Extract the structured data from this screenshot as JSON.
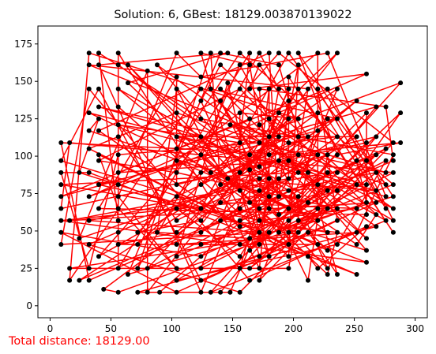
{
  "chart_data": {
    "type": "line",
    "title": "Solution: 6, GBest: 18129.003870139022",
    "footer_text": "Total distance: 18129.00",
    "xlabel": "",
    "ylabel": "",
    "xlim": [
      -10,
      310
    ],
    "ylim": [
      -8,
      187
    ],
    "x_ticks": [
      0,
      50,
      100,
      150,
      200,
      250,
      300
    ],
    "y_ticks": [
      0,
      25,
      50,
      75,
      100,
      125,
      150,
      175
    ],
    "grid": false,
    "line_color": "#ff0000",
    "point_color": "#000000",
    "cities": [
      [
        9,
        109
      ],
      [
        9,
        97
      ],
      [
        9,
        89
      ],
      [
        9,
        81
      ],
      [
        9,
        73
      ],
      [
        9,
        65
      ],
      [
        9,
        57
      ],
      [
        9,
        49
      ],
      [
        9,
        41
      ],
      [
        16,
        109
      ],
      [
        16,
        57
      ],
      [
        16,
        25
      ],
      [
        16,
        17
      ],
      [
        24,
        89
      ],
      [
        24,
        45
      ],
      [
        24,
        17
      ],
      [
        32,
        169
      ],
      [
        32,
        161
      ],
      [
        32,
        145
      ],
      [
        32,
        129
      ],
      [
        32,
        117
      ],
      [
        32,
        105
      ],
      [
        32,
        89
      ],
      [
        32,
        73
      ],
      [
        32,
        57
      ],
      [
        32,
        41
      ],
      [
        32,
        25
      ],
      [
        32,
        17
      ],
      [
        40,
        169
      ],
      [
        40,
        161
      ],
      [
        40,
        145
      ],
      [
        40,
        133
      ],
      [
        40,
        125
      ],
      [
        40,
        117
      ],
      [
        40,
        101
      ],
      [
        40,
        97
      ],
      [
        40,
        81
      ],
      [
        40,
        65
      ],
      [
        40,
        33
      ],
      [
        44,
        11
      ],
      [
        56,
        169
      ],
      [
        56,
        161
      ],
      [
        56,
        145
      ],
      [
        56,
        133
      ],
      [
        56,
        121
      ],
      [
        56,
        113
      ],
      [
        56,
        101
      ],
      [
        56,
        89
      ],
      [
        56,
        81
      ],
      [
        56,
        73
      ],
      [
        56,
        65
      ],
      [
        56,
        57
      ],
      [
        56,
        49
      ],
      [
        56,
        41
      ],
      [
        56,
        25
      ],
      [
        56,
        9
      ],
      [
        64,
        21
      ],
      [
        64,
        161
      ],
      [
        64,
        149
      ],
      [
        72,
        49
      ],
      [
        72,
        41
      ],
      [
        72,
        25
      ],
      [
        72,
        9
      ],
      [
        80,
        157
      ],
      [
        80,
        25
      ],
      [
        80,
        9
      ],
      [
        88,
        49
      ],
      [
        88,
        161
      ],
      [
        90,
        9
      ],
      [
        104,
        169
      ],
      [
        104,
        153
      ],
      [
        104,
        145
      ],
      [
        104,
        129
      ],
      [
        104,
        113
      ],
      [
        104,
        105
      ],
      [
        104,
        97
      ],
      [
        104,
        89
      ],
      [
        104,
        81
      ],
      [
        104,
        73
      ],
      [
        104,
        65
      ],
      [
        104,
        57
      ],
      [
        104,
        49
      ],
      [
        104,
        41
      ],
      [
        104,
        33
      ],
      [
        104,
        25
      ],
      [
        104,
        17
      ],
      [
        104,
        9
      ],
      [
        124,
        169
      ],
      [
        124,
        153
      ],
      [
        124,
        145
      ],
      [
        124,
        137
      ],
      [
        124,
        125
      ],
      [
        124,
        113
      ],
      [
        124,
        101
      ],
      [
        124,
        89
      ],
      [
        124,
        81
      ],
      [
        124,
        65
      ],
      [
        124,
        57
      ],
      [
        124,
        49
      ],
      [
        124,
        41
      ],
      [
        124,
        33
      ],
      [
        124,
        25
      ],
      [
        124,
        17
      ],
      [
        124,
        9
      ],
      [
        132,
        169
      ],
      [
        132,
        145
      ],
      [
        132,
        89
      ],
      [
        132,
        9
      ],
      [
        140,
        169
      ],
      [
        140,
        161
      ],
      [
        140,
        145
      ],
      [
        140,
        137
      ],
      [
        140,
        81
      ],
      [
        140,
        69
      ],
      [
        140,
        57
      ],
      [
        140,
        9
      ],
      [
        146,
        169
      ],
      [
        146,
        149
      ],
      [
        146,
        85
      ],
      [
        148,
        121
      ],
      [
        148,
        9
      ],
      [
        156,
        169
      ],
      [
        156,
        161
      ],
      [
        156,
        145
      ],
      [
        156,
        129
      ],
      [
        156,
        109
      ],
      [
        156,
        89
      ],
      [
        156,
        77
      ],
      [
        156,
        65
      ],
      [
        156,
        57
      ],
      [
        156,
        53
      ],
      [
        156,
        41
      ],
      [
        156,
        33
      ],
      [
        156,
        25
      ],
      [
        156,
        9
      ],
      [
        164,
        169
      ],
      [
        164,
        161
      ],
      [
        164,
        145
      ],
      [
        164,
        125
      ],
      [
        164,
        101
      ],
      [
        164,
        91
      ],
      [
        164,
        69
      ],
      [
        164,
        45
      ],
      [
        164,
        37
      ],
      [
        164,
        25
      ],
      [
        164,
        17
      ],
      [
        172,
        169
      ],
      [
        172,
        161
      ],
      [
        172,
        145
      ],
      [
        172,
        121
      ],
      [
        172,
        109
      ],
      [
        172,
        93
      ],
      [
        172,
        85
      ],
      [
        172,
        77
      ],
      [
        172,
        65
      ],
      [
        172,
        57
      ],
      [
        172,
        49
      ],
      [
        172,
        41
      ],
      [
        172,
        33
      ],
      [
        172,
        25
      ],
      [
        172,
        17
      ],
      [
        180,
        169
      ],
      [
        180,
        145
      ],
      [
        180,
        125
      ],
      [
        180,
        113
      ],
      [
        180,
        101
      ],
      [
        180,
        85
      ],
      [
        180,
        73
      ],
      [
        180,
        65
      ],
      [
        180,
        49
      ],
      [
        180,
        33
      ],
      [
        188,
        169
      ],
      [
        188,
        161
      ],
      [
        188,
        145
      ],
      [
        188,
        129
      ],
      [
        188,
        113
      ],
      [
        188,
        97
      ],
      [
        188,
        85
      ],
      [
        188,
        73
      ],
      [
        188,
        61
      ],
      [
        188,
        49
      ],
      [
        196,
        169
      ],
      [
        196,
        153
      ],
      [
        196,
        145
      ],
      [
        196,
        137
      ],
      [
        196,
        125
      ],
      [
        196,
        109
      ],
      [
        196,
        97
      ],
      [
        196,
        85
      ],
      [
        196,
        77
      ],
      [
        196,
        65
      ],
      [
        196,
        57
      ],
      [
        196,
        49
      ],
      [
        196,
        41
      ],
      [
        196,
        33
      ],
      [
        196,
        25
      ],
      [
        204,
        169
      ],
      [
        204,
        161
      ],
      [
        204,
        145
      ],
      [
        204,
        125
      ],
      [
        204,
        113
      ],
      [
        204,
        101
      ],
      [
        204,
        89
      ],
      [
        204,
        73
      ],
      [
        204,
        57
      ],
      [
        204,
        49
      ],
      [
        212,
        145
      ],
      [
        212,
        113
      ],
      [
        212,
        89
      ],
      [
        212,
        69
      ],
      [
        212,
        49
      ],
      [
        212,
        33
      ],
      [
        212,
        17
      ],
      [
        220,
        169
      ],
      [
        220,
        145
      ],
      [
        220,
        129
      ],
      [
        220,
        117
      ],
      [
        220,
        101
      ],
      [
        220,
        81
      ],
      [
        220,
        65
      ],
      [
        220,
        57
      ],
      [
        220,
        41
      ],
      [
        220,
        25
      ],
      [
        228,
        169
      ],
      [
        228,
        145
      ],
      [
        228,
        125
      ],
      [
        228,
        101
      ],
      [
        228,
        89
      ],
      [
        228,
        77
      ],
      [
        228,
        65
      ],
      [
        228,
        49
      ],
      [
        228,
        37
      ],
      [
        228,
        25
      ],
      [
        228,
        21
      ],
      [
        236,
        169
      ],
      [
        236,
        145
      ],
      [
        236,
        125
      ],
      [
        236,
        113
      ],
      [
        236,
        101
      ],
      [
        236,
        89
      ],
      [
        236,
        77
      ],
      [
        236,
        65
      ],
      [
        236,
        57
      ],
      [
        236,
        49
      ],
      [
        236,
        41
      ],
      [
        236,
        21
      ],
      [
        252,
        137
      ],
      [
        252,
        113
      ],
      [
        252,
        97
      ],
      [
        252,
        81
      ],
      [
        252,
        65
      ],
      [
        252,
        49
      ],
      [
        252,
        41
      ],
      [
        252,
        21
      ],
      [
        260,
        155
      ],
      [
        260,
        129
      ],
      [
        260,
        109
      ],
      [
        260,
        97
      ],
      [
        260,
        81
      ],
      [
        260,
        69
      ],
      [
        260,
        61
      ],
      [
        260,
        53
      ],
      [
        260,
        45
      ],
      [
        260,
        37
      ],
      [
        260,
        29
      ],
      [
        268,
        133
      ],
      [
        268,
        113
      ],
      [
        268,
        101
      ],
      [
        268,
        89
      ],
      [
        268,
        77
      ],
      [
        268,
        69
      ],
      [
        268,
        61
      ],
      [
        268,
        53
      ],
      [
        276,
        133
      ],
      [
        276,
        105
      ],
      [
        276,
        97
      ],
      [
        276,
        89
      ],
      [
        276,
        81
      ],
      [
        276,
        73
      ],
      [
        276,
        65
      ],
      [
        276,
        57
      ],
      [
        282,
        109
      ],
      [
        282,
        101
      ],
      [
        282,
        97
      ],
      [
        282,
        89
      ],
      [
        282,
        81
      ],
      [
        282,
        73
      ],
      [
        282,
        65
      ],
      [
        282,
        57
      ],
      [
        282,
        49
      ],
      [
        288,
        149
      ],
      [
        288,
        129
      ],
      [
        288,
        109
      ]
    ]
  }
}
